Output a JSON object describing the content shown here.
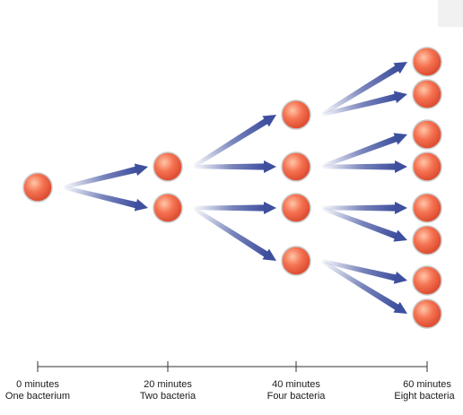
{
  "title": "",
  "colors": {
    "cell_light": "#ffc6a8",
    "cell_mid": "#f57352",
    "cell_dark": "#d8442a",
    "cell_edge": "#c9c9c9",
    "arrow": "#3e4f9e",
    "axis": "#333333"
  },
  "stages": [
    {
      "time": "0 minutes",
      "label": "One bacterium",
      "count": 1
    },
    {
      "time": "20 minutes",
      "label": "Two bacteria",
      "count": 2
    },
    {
      "time": "40 minutes",
      "label": "Four bacteria",
      "count": 4
    },
    {
      "time": "60 minutes",
      "label": "Eight bacteria",
      "count": 8
    }
  ]
}
